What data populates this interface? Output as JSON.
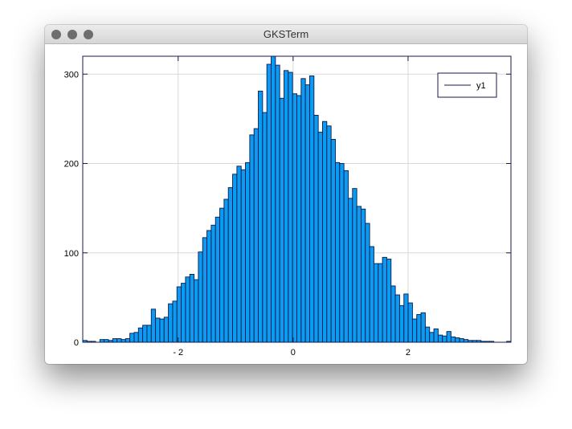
{
  "window": {
    "title": "GKSTerm"
  },
  "chart_data": {
    "type": "bar",
    "subtype": "histogram",
    "bin_start": -3.66,
    "bin_width": 0.0745,
    "values": [
      2,
      1,
      1,
      0,
      3,
      3,
      2,
      4,
      4,
      3,
      4,
      10,
      11,
      16,
      19,
      19,
      37,
      27,
      26,
      28,
      43,
      46,
      62,
      66,
      73,
      76,
      70,
      101,
      117,
      125,
      131,
      140,
      150,
      160,
      173,
      188,
      197,
      193,
      201,
      232,
      239,
      281,
      257,
      311,
      320,
      310,
      273,
      304,
      302,
      278,
      276,
      295,
      288,
      298,
      254,
      235,
      247,
      242,
      227,
      201,
      200,
      192,
      161,
      172,
      152,
      149,
      133,
      107,
      88,
      88,
      95,
      93,
      63,
      53,
      41,
      54,
      44,
      26,
      31,
      33,
      17,
      11,
      15,
      8,
      7,
      12,
      6,
      5,
      4,
      3,
      2,
      2,
      2,
      1,
      1,
      1,
      0,
      0,
      0,
      1
    ],
    "xlim": [
      -3.66,
      3.79
    ],
    "ylim": [
      0,
      320
    ],
    "xticks": [
      -2,
      0,
      2
    ],
    "xtick_labels": [
      "- 2",
      "0",
      "2"
    ],
    "yticks": [
      0,
      100,
      200,
      300
    ],
    "ytick_labels": [
      "0",
      "100",
      "200",
      "300"
    ],
    "grid": true,
    "legend": {
      "entries": [
        "y1"
      ],
      "placement": "top-right"
    },
    "colors": {
      "bar_fill": "#0b9bf2",
      "bar_edge": "#0a1a4a",
      "axis": "#1a1a4a",
      "grid": "#d8d8d8"
    }
  }
}
